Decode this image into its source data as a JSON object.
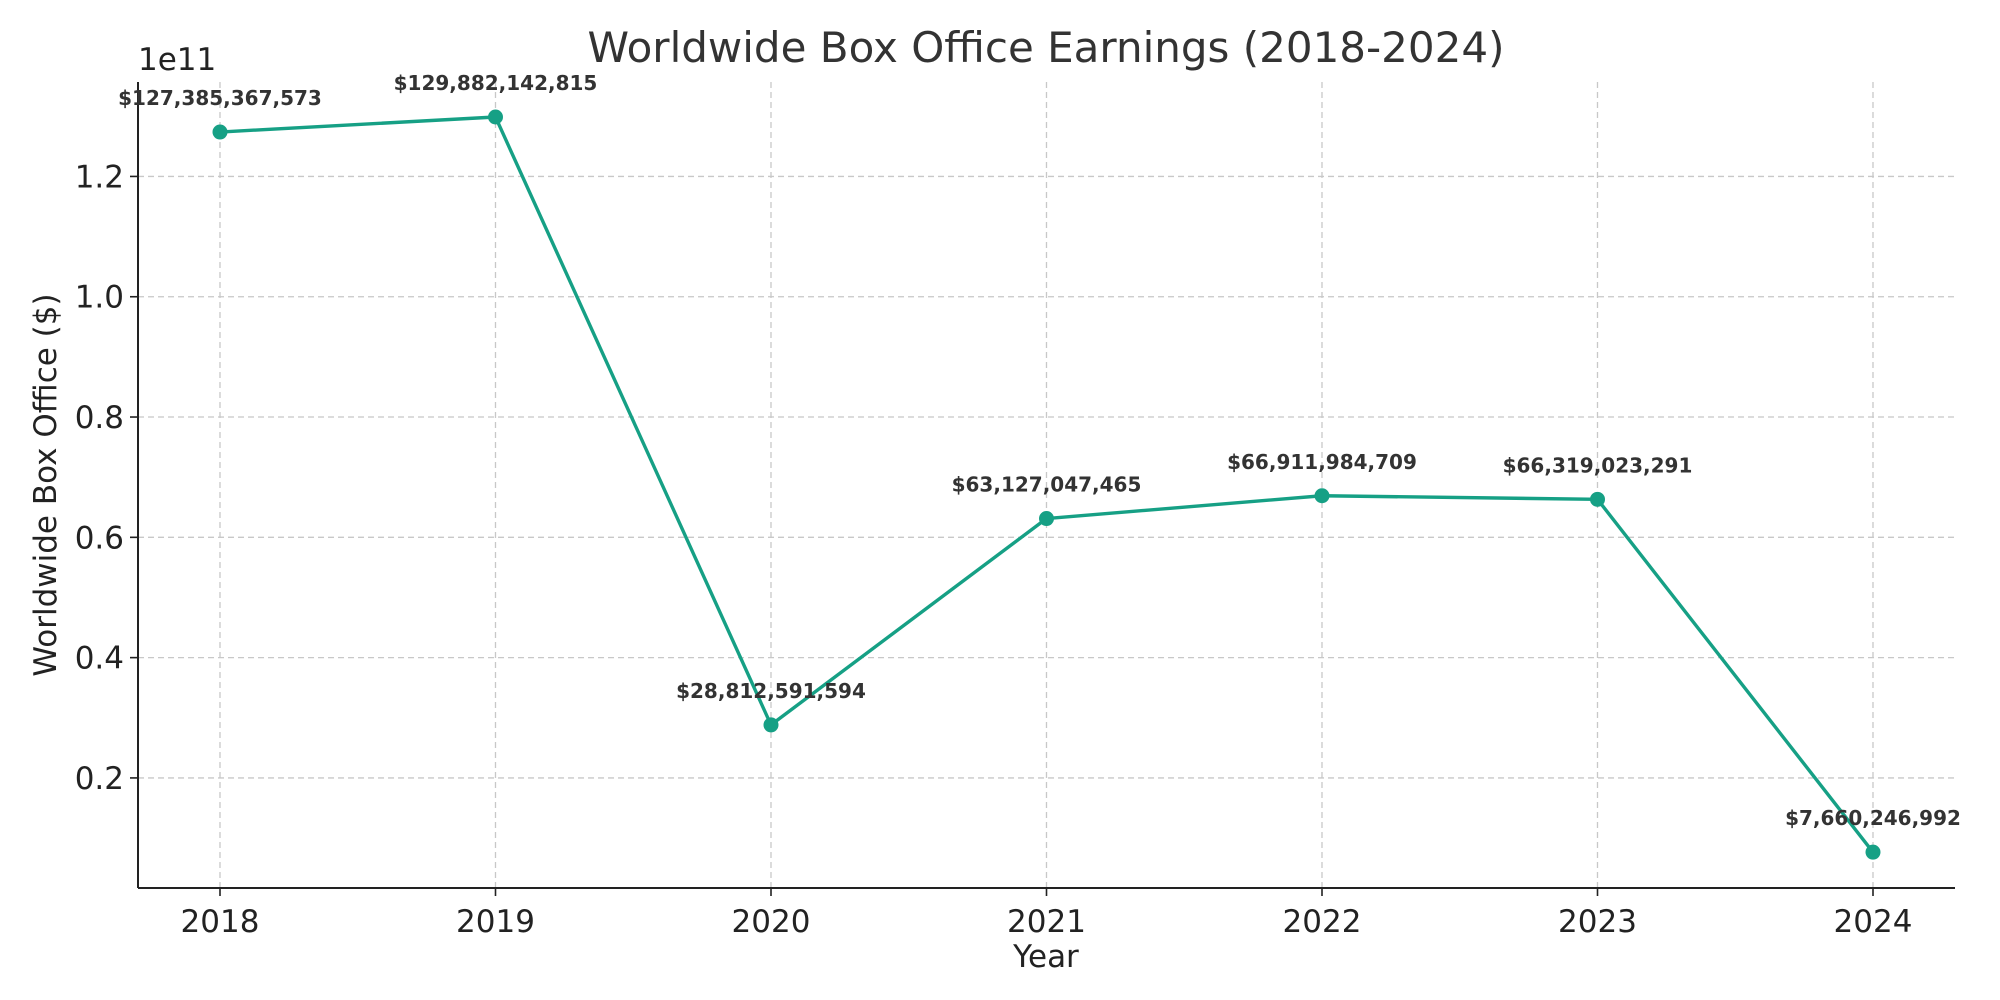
{
  "chart_data": {
    "type": "line",
    "title": "Worldwide Box Office Earnings (2018-2024)",
    "xlabel": "Year",
    "ylabel": "Worldwide Box Office ($)",
    "y_offset_label": "1e11",
    "categories": [
      "2018",
      "2019",
      "2020",
      "2021",
      "2022",
      "2023",
      "2024"
    ],
    "series": [
      {
        "values": [
          127385367573,
          129882142815,
          28812591594,
          63127047465,
          66911984709,
          66319023291,
          7660246992
        ],
        "labels": [
          "$127,385,367,573",
          "$129,882,142,815",
          "$28,812,591,594",
          "$63,127,047,465",
          "$66,911,984,709",
          "$66,319,023,291",
          "$7,660,246,992"
        ],
        "color": "#16a085"
      }
    ],
    "ylim": [
      1700000000,
      135700000000
    ],
    "yticks": [
      0.2,
      0.4,
      0.6,
      0.8,
      1.0,
      1.2
    ],
    "ytick_labels": [
      "0.2",
      "0.4",
      "0.6",
      "0.8",
      "1.0",
      "1.2"
    ],
    "ytick_scale": 100000000000,
    "grid": true,
    "legend": "none"
  }
}
